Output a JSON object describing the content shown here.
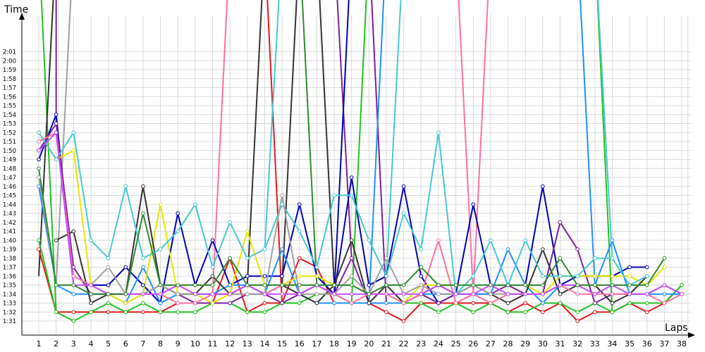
{
  "chart_data": {
    "type": "line",
    "title": "",
    "ylabel": "Time",
    "xlabel": "Laps",
    "x": [
      1,
      2,
      3,
      4,
      5,
      6,
      7,
      8,
      9,
      10,
      11,
      12,
      13,
      14,
      15,
      16,
      17,
      18,
      19,
      20,
      21,
      22,
      23,
      24,
      25,
      26,
      27,
      28,
      29,
      30,
      31,
      32,
      33,
      34,
      35,
      36,
      37,
      38
    ],
    "y_ticks": [
      "1:31",
      "1:32",
      "1:33",
      "1:34",
      "1:35",
      "1:36",
      "1:37",
      "1:38",
      "1:39",
      "1:40",
      "1:41",
      "1:42",
      "1:43",
      "1:44",
      "1:45",
      "1:46",
      "1:47",
      "1:48",
      "1:49",
      "1:50",
      "1:51",
      "1:52",
      "1:53",
      "1:54",
      "1:55",
      "1:56",
      "1:57",
      "1:58",
      "1:59",
      "2:00",
      "2:01"
    ],
    "ylim_seconds": [
      90,
      123
    ],
    "grid": true,
    "legend": "none",
    "series": [
      {
        "color": "#e31a1c",
        "values": [
          99,
          92,
          92,
          92,
          92,
          92,
          92,
          92,
          93,
          93,
          93,
          98,
          92,
          93,
          93,
          98,
          97,
          93,
          93,
          93,
          92,
          91,
          93,
          93,
          93,
          93,
          93,
          92,
          93,
          92,
          93,
          91,
          92,
          92,
          93,
          92,
          93,
          95
        ]
      },
      {
        "color": "#22c322",
        "values": [
          100,
          92,
          91,
          92,
          93,
          92,
          93,
          92,
          92,
          92,
          93,
          93,
          92,
          92,
          93,
          93,
          94,
          94,
          93,
          93,
          93,
          93,
          93,
          92,
          93,
          92,
          93,
          92,
          92,
          93,
          93,
          92,
          93,
          92,
          93,
          93,
          93,
          95
        ]
      },
      {
        "color": "#0000b4",
        "values": [
          109,
          114,
          95,
          95,
          95,
          97,
          95,
          93,
          103,
          95,
          100,
          95,
          96,
          96,
          96,
          104,
          96,
          94,
          107,
          95,
          96,
          106,
          96,
          93,
          94,
          104,
          95,
          95,
          95,
          106,
          95,
          96,
          96,
          96,
          97,
          97,
          null,
          null
        ]
      },
      {
        "color": "#7a1fa2",
        "values": [
          110,
          113,
          97,
          94,
          94,
          94,
          94,
          95,
          94,
          93,
          93,
          93,
          94,
          94,
          93,
          94,
          95,
          94,
          98,
          93,
          93,
          93,
          94,
          93,
          94,
          94,
          94,
          95,
          94,
          94,
          102,
          99,
          93,
          94,
          94,
          94,
          95,
          94
        ]
      },
      {
        "color": "#1e90ff",
        "values": [
          106,
          95,
          94,
          94,
          94,
          93,
          97,
          93,
          94,
          94,
          94,
          95,
          95,
          94,
          99,
          94,
          93,
          93,
          93,
          93,
          93,
          93,
          94,
          94,
          94,
          94,
          94,
          99,
          95,
          93,
          95,
          95,
          95,
          100,
          94,
          94,
          94,
          94
        ]
      },
      {
        "color": "#e6e600",
        "values": [
          112,
          109,
          110,
          95,
          94,
          93,
          94,
          104,
          94,
          94,
          93,
          94,
          101,
          95,
          95,
          96,
          96,
          95,
          95,
          94,
          94,
          93,
          95,
          95,
          95,
          95,
          95,
          95,
          95,
          94,
          96,
          96,
          96,
          96,
          96,
          95,
          97,
          null
        ]
      },
      {
        "color": "#333333",
        "values": [
          null,
          100,
          101,
          93,
          94,
          94,
          106,
          95,
          94,
          94,
          96,
          94,
          95,
          94,
          95,
          94,
          93,
          95,
          100,
          93,
          95,
          93,
          94,
          95,
          94,
          95,
          94,
          93,
          94,
          99,
          94,
          95,
          95,
          93,
          94,
          96,
          null,
          null
        ]
      },
      {
        "color": "#46c8d2",
        "values": [
          112,
          109,
          112,
          100,
          98,
          106,
          98,
          99,
          101,
          104,
          97,
          102,
          98,
          99,
          104,
          101,
          97,
          105,
          105,
          100,
          96,
          103,
          99,
          112,
          94,
          96,
          100,
          95,
          100,
          96,
          96,
          96,
          98,
          98,
          95,
          96,
          null,
          null
        ]
      },
      {
        "color": "#ff6fa0",
        "values": [
          111,
          112,
          96,
          95,
          94,
          94,
          94,
          94,
          93,
          93,
          94,
          94,
          94,
          94,
          95,
          95,
          95,
          94,
          93,
          94,
          94,
          93,
          94,
          100,
          93,
          94,
          93,
          94,
          94,
          94,
          95,
          94,
          94,
          94,
          94,
          94,
          93,
          94
        ]
      },
      {
        "color": "#a0a0a0",
        "values": [
          107,
          95,
          95,
          95,
          97,
          94,
          94,
          95,
          94,
          94,
          94,
          94,
          94,
          94,
          105,
          94,
          94,
          94,
          96,
          94,
          98,
          94,
          95,
          94,
          94,
          95,
          94,
          94,
          94,
          94,
          95,
          95,
          94,
          95,
          94,
          94,
          95,
          94
        ]
      },
      {
        "color": "#c84bff",
        "values": [
          110,
          112,
          95,
          95,
          94,
          94,
          94,
          94,
          95,
          94,
          94,
          94,
          95,
          94,
          94,
          94,
          95,
          94,
          94,
          94,
          94,
          94,
          94,
          95,
          94,
          94,
          95,
          94,
          94,
          94,
          95,
          95,
          94,
          95,
          94,
          94,
          95,
          94
        ]
      },
      {
        "color": "#2e8b2e",
        "values": [
          108,
          95,
          95,
          94,
          94,
          94,
          103,
          95,
          95,
          95,
          95,
          98,
          95,
          95,
          95,
          95,
          95,
          95,
          95,
          94,
          95,
          95,
          97,
          95,
          95,
          95,
          95,
          95,
          95,
          95,
          98,
          95,
          95,
          95,
          95,
          95,
          98,
          null
        ]
      }
    ],
    "spikes": [
      {
        "color": "#22c322",
        "x": 1,
        "to": 2
      },
      {
        "color": "#333333",
        "x": 2,
        "to": 1
      },
      {
        "color": "#7a1fa2",
        "x": 2,
        "to": 2
      },
      {
        "color": "#a0a0a0",
        "x": 3,
        "to": 2
      },
      {
        "color": "#ff6fa0",
        "x": 12,
        "to": 11
      },
      {
        "color": "#333333",
        "x": 14,
        "to": 13
      },
      {
        "color": "#e31a1c",
        "x": 14,
        "to": 15
      },
      {
        "color": "#46c8d2",
        "x": 15,
        "to": 14
      },
      {
        "color": "#333333",
        "x": 16,
        "to": 15
      },
      {
        "color": "#2e8b2e",
        "x": 16,
        "to": 17
      },
      {
        "color": "#333333",
        "x": 17,
        "to": 18
      },
      {
        "color": "#7a1fa2",
        "x": 18,
        "to": 19
      },
      {
        "color": "#0000b4",
        "x": 19,
        "to": 18
      },
      {
        "color": "#7a1fa2",
        "x": 20,
        "to": 21
      },
      {
        "color": "#22c322",
        "x": 20,
        "to": 19
      },
      {
        "color": "#1e90ff",
        "x": 21,
        "to": 20
      },
      {
        "color": "#46c8d2",
        "x": 22,
        "to": 21
      },
      {
        "color": "#ff6fa0",
        "x": 25,
        "to": 26
      },
      {
        "color": "#ff6fa0",
        "x": 27,
        "to": 26
      },
      {
        "color": "#1e90ff",
        "x": 32,
        "to": 33
      },
      {
        "color": "#22c322",
        "x": 33,
        "to": 34
      },
      {
        "color": "#46c8d2",
        "x": 33,
        "to": 34
      }
    ]
  }
}
